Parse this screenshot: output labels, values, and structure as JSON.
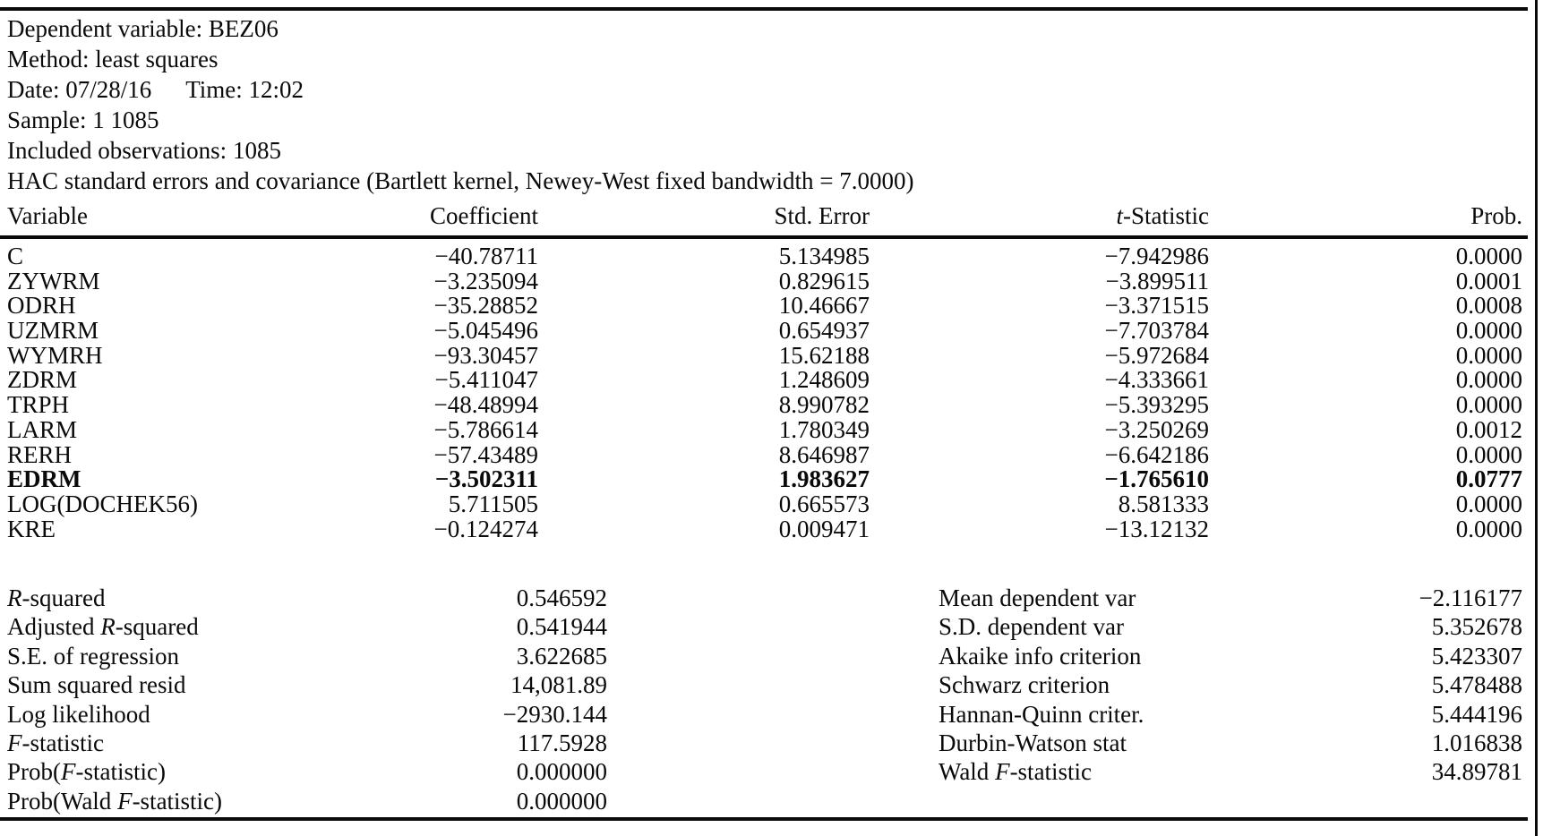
{
  "info": {
    "dependent_variable": "Dependent variable: BEZ06",
    "method": "Method: least squares",
    "date": "Date: 07/28/16",
    "time": "Time: 12:02",
    "sample": "Sample: 1 1085",
    "observations": "Included observations: 1085",
    "hac": "HAC standard errors and covariance (Bartlett kernel, Newey-West fixed bandwidth = 7.0000)"
  },
  "table": {
    "headers": {
      "variable": "Variable",
      "coefficient": "Coefficient",
      "std_error": "Std. Error",
      "t_statistic": {
        "pre": "",
        "it": "t",
        "post": "-Statistic"
      },
      "prob": "Prob."
    },
    "rows": [
      {
        "variable": "C",
        "coefficient": "−40.78711",
        "std_error": "5.134985",
        "t_stat": "−7.942986",
        "prob": "0.0000"
      },
      {
        "variable": "ZYWRM",
        "coefficient": "−3.235094",
        "std_error": "0.829615",
        "t_stat": "−3.899511",
        "prob": "0.0001"
      },
      {
        "variable": "ODRH",
        "coefficient": "−35.28852",
        "std_error": "10.46667",
        "t_stat": "−3.371515",
        "prob": "0.0008"
      },
      {
        "variable": "UZMRM",
        "coefficient": "−5.045496",
        "std_error": "0.654937",
        "t_stat": "−7.703784",
        "prob": "0.0000"
      },
      {
        "variable": "WYMRH",
        "coefficient": "−93.30457",
        "std_error": "15.62188",
        "t_stat": "−5.972684",
        "prob": "0.0000"
      },
      {
        "variable": "ZDRM",
        "coefficient": "−5.411047",
        "std_error": "1.248609",
        "t_stat": "−4.333661",
        "prob": "0.0000"
      },
      {
        "variable": "TRPH",
        "coefficient": "−48.48994",
        "std_error": "8.990782",
        "t_stat": "−5.393295",
        "prob": "0.0000"
      },
      {
        "variable": "LARM",
        "coefficient": "−5.786614",
        "std_error": "1.780349",
        "t_stat": "−3.250269",
        "prob": "0.0012"
      },
      {
        "variable": "RERH",
        "coefficient": "−57.43489",
        "std_error": "8.646987",
        "t_stat": "−6.642186",
        "prob": "0.0000"
      },
      {
        "variable": "EDRM",
        "coefficient": "−3.502311",
        "std_error": "1.983627",
        "t_stat": "−1.765610",
        "prob": "0.0777"
      },
      {
        "variable": "LOG(DOCHEK56)",
        "coefficient": "5.711505",
        "std_error": "0.665573",
        "t_stat": "8.581333",
        "prob": "0.0000"
      },
      {
        "variable": "KRE",
        "coefficient": "−0.124274",
        "std_error": "0.009471",
        "t_stat": "−13.12132",
        "prob": "0.0000"
      }
    ]
  },
  "summary": {
    "left": [
      {
        "label": {
          "pre": "",
          "it": "R",
          "post": "-squared"
        },
        "value": "0.546592"
      },
      {
        "label": {
          "pre": "Adjusted ",
          "it": "R",
          "post": "-squared"
        },
        "value": "0.541944"
      },
      {
        "label": {
          "pre": "S.E. of regression",
          "it": "",
          "post": ""
        },
        "value": "3.622685"
      },
      {
        "label": {
          "pre": "Sum squared resid",
          "it": "",
          "post": ""
        },
        "value": "14,081.89"
      },
      {
        "label": {
          "pre": "Log likelihood",
          "it": "",
          "post": ""
        },
        "value": "−2930.144"
      },
      {
        "label": {
          "pre": "",
          "it": "F",
          "post": "-statistic"
        },
        "value": "117.5928"
      },
      {
        "label": {
          "pre": "Prob(",
          "it": "F",
          "post": "-statistic)"
        },
        "value": "0.000000"
      },
      {
        "label": {
          "pre": "Prob(Wald ",
          "it": "F",
          "post": "-statistic)"
        },
        "value": "0.000000"
      }
    ],
    "right": [
      {
        "label": {
          "pre": "Mean dependent var",
          "it": "",
          "post": ""
        },
        "value": "−2.116177"
      },
      {
        "label": {
          "pre": "S.D. dependent var",
          "it": "",
          "post": ""
        },
        "value": "5.352678"
      },
      {
        "label": {
          "pre": "Akaike info criterion",
          "it": "",
          "post": ""
        },
        "value": "5.423307"
      },
      {
        "label": {
          "pre": "Schwarz criterion",
          "it": "",
          "post": ""
        },
        "value": "5.478488"
      },
      {
        "label": {
          "pre": "Hannan-Quinn criter.",
          "it": "",
          "post": ""
        },
        "value": "5.444196"
      },
      {
        "label": {
          "pre": "Durbin-Watson stat",
          "it": "",
          "post": ""
        },
        "value": "1.016838"
      },
      {
        "label": {
          "pre": "Wald ",
          "it": "F",
          "post": "-statistic"
        },
        "value": "34.89781"
      }
    ]
  }
}
